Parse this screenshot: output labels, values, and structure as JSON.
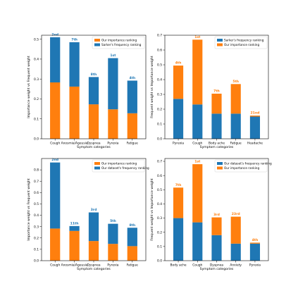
{
  "colors": {
    "orange": "#ff7f0e",
    "blue": "#1f77b4"
  },
  "chart_data": [
    {
      "type": "bar",
      "stacked": true,
      "categories": [
        "Cough",
        "Anosmia/Ageusia",
        "Dyspnea",
        "Pyrexia",
        "Fatigue"
      ],
      "series": [
        {
          "name": "Our importance ranking",
          "color": "orange",
          "values": [
            0.283,
            0.262,
            0.173,
            0.148,
            0.128
          ]
        },
        {
          "name": "Sarker's frequency ranking",
          "color": "blue",
          "values": [
            0.227,
            0.223,
            0.137,
            0.257,
            0.164
          ]
        }
      ],
      "bar_labels": [
        "2nd",
        "7th",
        "8th",
        "1st",
        "4th"
      ],
      "bar_label_color": "blue",
      "xlabel": "Symptom categories",
      "ylabel": "Importance weight vs Frequent weight",
      "ylim": [
        0,
        0.52
      ],
      "yticks": [
        "0.0",
        "0.1",
        "0.2",
        "0.3",
        "0.4",
        "0.5"
      ],
      "legend": "top-right",
      "legend_order": [
        0,
        1
      ]
    },
    {
      "type": "bar",
      "stacked": true,
      "categories": [
        "Pyrexia",
        "Cough",
        "Body ache",
        "Fatigue",
        "Headache"
      ],
      "series": [
        {
          "name": "Sarker's frequency ranking",
          "color": "blue",
          "values": [
            0.27,
            0.232,
            0.17,
            0.17,
            0.15
          ]
        },
        {
          "name": "Our importance ranking",
          "color": "orange",
          "values": [
            0.225,
            0.438,
            0.135,
            0.2,
            0.007
          ]
        }
      ],
      "bar_labels": [
        "4th",
        "1st",
        "7th",
        "5th",
        "21nd"
      ],
      "bar_label_color": "orange",
      "xlabel": "Symptom categories",
      "ylabel": "Frequent weight vs Importance weight",
      "ylim": [
        0,
        0.7
      ],
      "yticks": [
        "0.0",
        "0.1",
        "0.2",
        "0.3",
        "0.4",
        "0.5",
        "0.6",
        "0.7"
      ],
      "legend": "top-right",
      "legend_order": [
        0,
        1
      ]
    },
    {
      "type": "bar",
      "stacked": true,
      "categories": [
        "Cough",
        "Anosmia/Ageusia",
        "Dyspnea",
        "Pyrexia",
        "Fatigue"
      ],
      "series": [
        {
          "name": "Our importance ranking",
          "color": "orange",
          "values": [
            0.283,
            0.262,
            0.173,
            0.148,
            0.128
          ]
        },
        {
          "name": "Our dataset's frequency ranking",
          "color": "blue",
          "values": [
            0.582,
            0.043,
            0.252,
            0.177,
            0.162
          ]
        }
      ],
      "bar_labels": [
        "2nd",
        "11th",
        "3rd",
        "5th",
        "8th"
      ],
      "bar_label_color": "blue",
      "xlabel": "Symptom categories",
      "ylabel": "Importance weight vs Frequent weight",
      "ylim": [
        0,
        0.9
      ],
      "yticks": [
        "0.0",
        "0.1",
        "0.2",
        "0.3",
        "0.4",
        "0.5",
        "0.6",
        "0.7",
        "0.8"
      ],
      "legend": "top-right",
      "legend_order": [
        0,
        1
      ]
    },
    {
      "type": "bar",
      "stacked": true,
      "categories": [
        "Body ache",
        "Cough",
        "Dyspnea",
        "Anxiety",
        "Pyrexia"
      ],
      "series": [
        {
          "name": "Our dataset's frequency ranking",
          "color": "blue",
          "values": [
            0.3,
            0.27,
            0.18,
            0.12,
            0.12
          ]
        },
        {
          "name": "Our importance ranking",
          "color": "orange",
          "values": [
            0.215,
            0.41,
            0.125,
            0.19,
            0.007
          ]
        }
      ],
      "bar_labels": [
        "7th",
        "1st",
        "3rd",
        "23rd",
        "4th"
      ],
      "bar_label_color": "orange",
      "xlabel": "Symptom categories",
      "ylabel": "Frequent weight vs Importance weight",
      "ylim": [
        0,
        0.72
      ],
      "yticks": [
        "0.0",
        "0.1",
        "0.2",
        "0.3",
        "0.4",
        "0.5",
        "0.6",
        "0.7"
      ],
      "legend": "top-right",
      "legend_order": [
        0,
        1
      ]
    }
  ]
}
